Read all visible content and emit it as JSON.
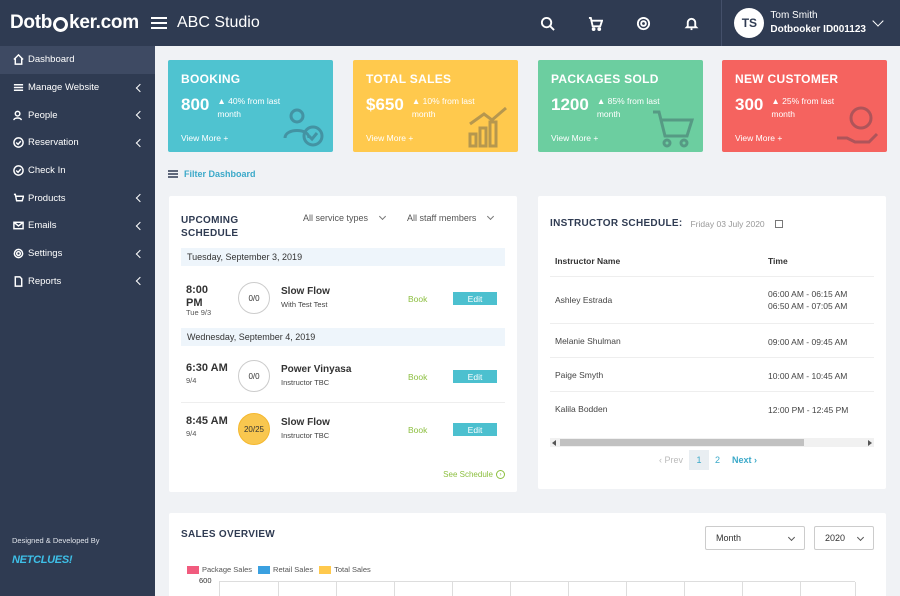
{
  "app": {
    "logo": {
      "pre": "Dotb",
      "post": "ker.com"
    },
    "studio": "ABC Studio"
  },
  "user": {
    "initials": "TS",
    "name": "Tom Smith",
    "account": "Dotbooker ID001123"
  },
  "sidebar": {
    "items": [
      {
        "label": "Dashboard",
        "icon": "home-icon"
      },
      {
        "label": "Manage Website",
        "icon": "list-icon"
      },
      {
        "label": "People",
        "icon": "people-icon"
      },
      {
        "label": "Reservation",
        "icon": "check-circle-icon"
      },
      {
        "label": "Check In",
        "icon": "check-circle-icon"
      },
      {
        "label": "Products",
        "icon": "cart-icon"
      },
      {
        "label": "Emails",
        "icon": "envelope-icon"
      },
      {
        "label": "Settings",
        "icon": "gear-icon"
      },
      {
        "label": "Reports",
        "icon": "document-icon"
      }
    ],
    "credit": "Designed & Developed By",
    "developer": "NETCLUES!"
  },
  "cards": [
    {
      "title": "BOOKING",
      "value": "800",
      "change": "40% from last month",
      "more": "View More +",
      "color": "#4fc3d0"
    },
    {
      "title": "TOTAL SALES",
      "value": "$650",
      "change": "10% from last month",
      "more": "View More +",
      "color": "#ffc94d"
    },
    {
      "title": "PACKAGES SOLD",
      "value": "1200",
      "change": "85% from last month",
      "more": "View More +",
      "color": "#6ccea0"
    },
    {
      "title": "NEW CUSTOMER",
      "value": "300",
      "change": "25% from last month",
      "more": "View More +",
      "color": "#f5635f"
    }
  ],
  "filter": {
    "label": "Filter Dashboard"
  },
  "upcoming": {
    "title_line1": "UPCOMING",
    "title_line2": "SCHEDULE",
    "service_filter": "All service types",
    "staff_filter": "All staff members",
    "days": [
      {
        "date": "Tuesday, September 3, 2019"
      },
      {
        "date": "Wednesday, September 4, 2019"
      }
    ],
    "classes": [
      {
        "time1": "8:00",
        "time2": "PM",
        "sub": "Tue 9/3",
        "cap": "0/0",
        "name": "Slow Flow",
        "inst": "With Test Test",
        "book": "Book",
        "edit": "Edit"
      },
      {
        "time1": "6:30 AM",
        "time2": "",
        "sub": "9/4",
        "cap": "0/0",
        "name": "Power Vinyasa",
        "inst": "Instructor TBC",
        "book": "Book",
        "edit": "Edit"
      },
      {
        "time1": "8:45 AM",
        "time2": "",
        "sub": "9/4",
        "cap": "20/25",
        "name": "Slow Flow",
        "inst": "Instructor TBC",
        "book": "Book",
        "edit": "Edit"
      }
    ],
    "see_schedule": "See Schedule"
  },
  "instructor": {
    "title": "INSTRUCTOR SCHEDULE:",
    "date": "Friday 03 July 2020",
    "col_name": "Instructor Name",
    "col_time": "Time",
    "rows": [
      {
        "name": "Ashley Estrada",
        "time1": "06:00 AM - 06:15 AM",
        "time2": "06:50 AM - 07:05 AM"
      },
      {
        "name": "Melanie Shulman",
        "time1": "09:00 AM - 09:45 AM",
        "time2": ""
      },
      {
        "name": "Paige Smyth",
        "time1": "10:00 AM - 10:45 AM",
        "time2": ""
      },
      {
        "name": "Kalila Bodden",
        "time1": "12:00 PM - 12:45 PM",
        "time2": ""
      }
    ],
    "pager": {
      "prev": "Prev",
      "pages": [
        "1",
        "2"
      ],
      "current": 1,
      "next": "Next"
    }
  },
  "sales": {
    "title": "SALES OVERVIEW",
    "period": "Month",
    "year": "2020",
    "legend": [
      {
        "name": "Package Sales",
        "color": "#f15b7e"
      },
      {
        "name": "Retail Sales",
        "color": "#3aa0e0"
      },
      {
        "name": "Total Sales",
        "color": "#ffc94d"
      }
    ],
    "y_top": "600"
  }
}
